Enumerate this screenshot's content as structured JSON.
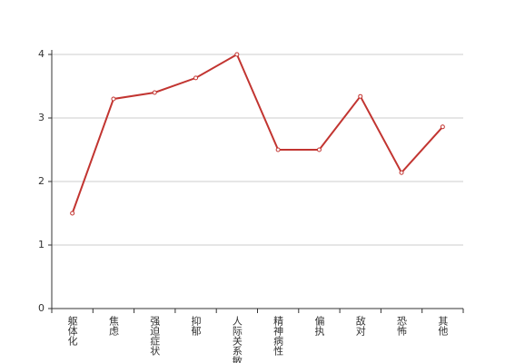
{
  "chart_data": {
    "type": "line",
    "categories": [
      "躯体化",
      "焦虑",
      "强迫症状",
      "抑郁",
      "人际关系敏感",
      "精神病性",
      "偏执",
      "敌对",
      "恐怖",
      "其他"
    ],
    "values": [
      1.5,
      3.3,
      3.4,
      3.63,
      4.0,
      2.5,
      2.5,
      3.34,
      2.14,
      2.86
    ],
    "color": "#c23531",
    "ylim": [
      0,
      4
    ],
    "yticks": [
      0,
      1,
      2,
      3,
      4
    ],
    "grid": true
  }
}
